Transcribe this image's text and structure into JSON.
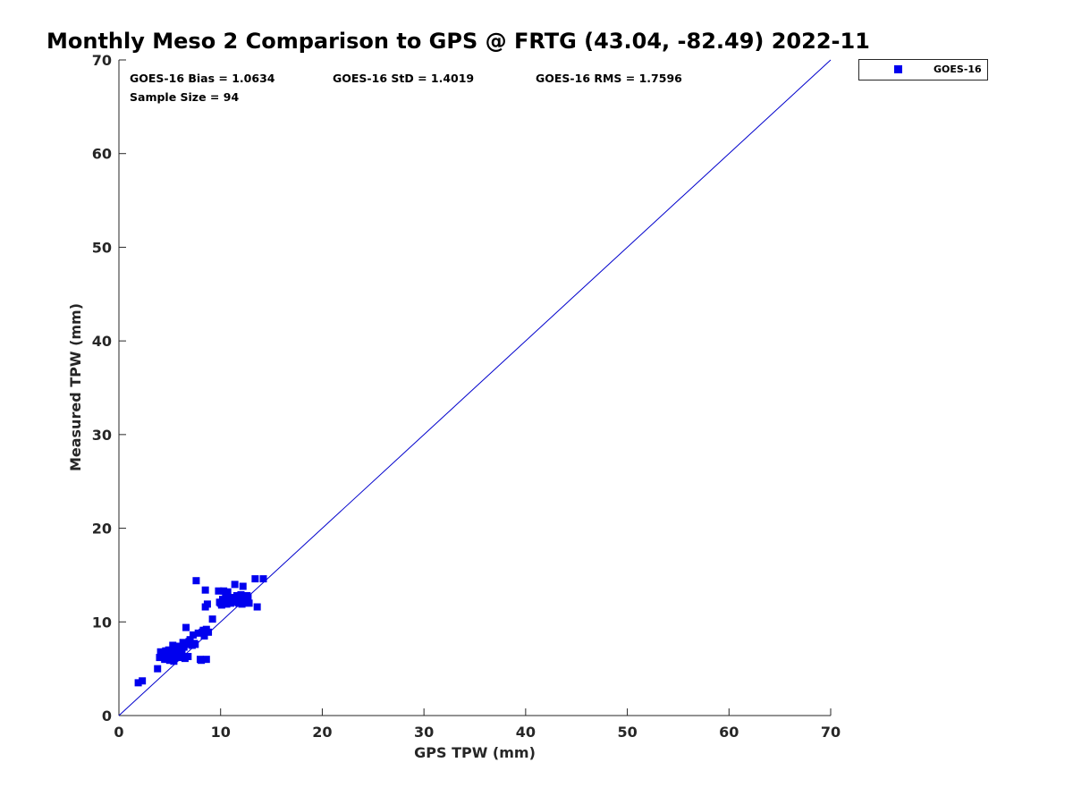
{
  "chart_data": {
    "type": "scatter",
    "title": "Monthly Meso 2 Comparison to GPS @ FRTG (43.04, -82.49) 2022-11",
    "xlabel": "GPS TPW (mm)",
    "ylabel": "Measured TPW (mm)",
    "xlim": [
      0,
      70
    ],
    "ylim": [
      0,
      70
    ],
    "xticks": [
      0,
      10,
      20,
      30,
      40,
      50,
      60,
      70
    ],
    "yticks": [
      0,
      10,
      20,
      30,
      40,
      50,
      60,
      70
    ],
    "grid": false,
    "legend_position": "outside-top-right",
    "colors": {
      "series": "#0000ee",
      "line": "#0000cc",
      "axis": "#262626"
    },
    "stats": [
      "GOES-16 Bias = 1.0634",
      "GOES-16 StD = 1.4019",
      "GOES-16 RMS = 1.7596",
      "Sample Size = 94"
    ],
    "reference_line": {
      "x": [
        0,
        70
      ],
      "y": [
        0,
        70
      ]
    },
    "series": [
      {
        "name": "GOES-16",
        "marker": "square",
        "points": [
          [
            1.9,
            3.5
          ],
          [
            2.3,
            3.7
          ],
          [
            3.8,
            5.0
          ],
          [
            4.0,
            6.2
          ],
          [
            4.1,
            6.8
          ],
          [
            4.3,
            6.5
          ],
          [
            4.5,
            6.0
          ],
          [
            4.6,
            6.9
          ],
          [
            4.8,
            6.3
          ],
          [
            4.9,
            7.0
          ],
          [
            5.0,
            5.9
          ],
          [
            5.1,
            6.6
          ],
          [
            5.2,
            6.1
          ],
          [
            5.3,
            7.5
          ],
          [
            5.4,
            5.8
          ],
          [
            5.5,
            6.8
          ],
          [
            5.6,
            6.4
          ],
          [
            5.7,
            7.1
          ],
          [
            5.8,
            6.9
          ],
          [
            5.9,
            7.4
          ],
          [
            6.0,
            6.2
          ],
          [
            6.1,
            7.0
          ],
          [
            6.2,
            6.5
          ],
          [
            6.3,
            7.8
          ],
          [
            6.4,
            7.3
          ],
          [
            6.5,
            6.1
          ],
          [
            6.6,
            9.4
          ],
          [
            6.7,
            7.6
          ],
          [
            6.8,
            6.3
          ],
          [
            6.9,
            7.9
          ],
          [
            7.0,
            8.1
          ],
          [
            7.2,
            7.5
          ],
          [
            7.3,
            8.6
          ],
          [
            7.5,
            7.6
          ],
          [
            7.6,
            14.4
          ],
          [
            7.8,
            8.8
          ],
          [
            8.0,
            6.0
          ],
          [
            8.1,
            5.9
          ],
          [
            8.2,
            8.9
          ],
          [
            8.4,
            8.5
          ],
          [
            8.5,
            13.4
          ],
          [
            8.6,
            6.0
          ],
          [
            8.5,
            11.6
          ],
          [
            8.6,
            9.2
          ],
          [
            8.7,
            11.9
          ],
          [
            8.8,
            8.9
          ],
          [
            9.2,
            10.3
          ],
          [
            9.8,
            13.3
          ],
          [
            10.0,
            12.0
          ],
          [
            10.1,
            11.8
          ],
          [
            10.2,
            12.4
          ],
          [
            10.3,
            13.3
          ],
          [
            10.4,
            12.0
          ],
          [
            10.5,
            12.6
          ],
          [
            10.6,
            11.9
          ],
          [
            10.7,
            13.2
          ],
          [
            10.8,
            12.2
          ],
          [
            10.9,
            12.5
          ],
          [
            11.0,
            12.0
          ],
          [
            11.1,
            12.3
          ],
          [
            11.2,
            12.1
          ],
          [
            11.3,
            12.6
          ],
          [
            11.4,
            14.0
          ],
          [
            11.5,
            12.2
          ],
          [
            11.6,
            12.8
          ],
          [
            11.7,
            12.4
          ],
          [
            11.8,
            12.0
          ],
          [
            11.9,
            12.7
          ],
          [
            12.0,
            12.9
          ],
          [
            12.1,
            11.9
          ],
          [
            12.2,
            13.8
          ],
          [
            12.3,
            12.5
          ],
          [
            12.4,
            12.1
          ],
          [
            12.5,
            12.8
          ],
          [
            12.6,
            12.3
          ],
          [
            12.7,
            12.6
          ],
          [
            12.8,
            12.0
          ],
          [
            13.4,
            14.6
          ],
          [
            13.6,
            11.6
          ],
          [
            14.2,
            14.6
          ],
          [
            4.4,
            6.4
          ],
          [
            5.0,
            6.2
          ],
          [
            5.8,
            6.6
          ],
          [
            6.2,
            7.2
          ],
          [
            6.9,
            7.6
          ],
          [
            7.4,
            7.7
          ],
          [
            8.3,
            9.1
          ],
          [
            10.5,
            12.9
          ],
          [
            11.5,
            12.6
          ],
          [
            12.0,
            12.3
          ],
          [
            12.6,
            12.8
          ],
          [
            4.7,
            6.6
          ],
          [
            5.5,
            7.3
          ],
          [
            9.9,
            12.1
          ]
        ]
      }
    ]
  }
}
